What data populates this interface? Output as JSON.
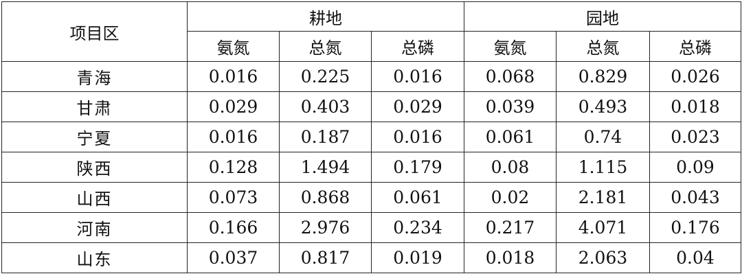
{
  "table": {
    "corner_header": "项目区",
    "groups": [
      "耕地",
      "园地"
    ],
    "subheaders": [
      "氨氮",
      "总氮",
      "总磷",
      "氨氮",
      "总氮",
      "总磷"
    ],
    "rows": [
      {
        "region": "青海",
        "values": [
          "0.016",
          "0.225",
          "0.016",
          "0.068",
          "0.829",
          "0.026"
        ]
      },
      {
        "region": "甘肃",
        "values": [
          "0.029",
          "0.403",
          "0.029",
          "0.039",
          "0.493",
          "0.018"
        ]
      },
      {
        "region": "宁夏",
        "values": [
          "0.016",
          "0.187",
          "0.016",
          "0.061",
          "0.74",
          "0.023"
        ]
      },
      {
        "region": "陕西",
        "values": [
          "0.128",
          "1.494",
          "0.179",
          "0.08",
          "1.115",
          "0.09"
        ]
      },
      {
        "region": "山西",
        "values": [
          "0.073",
          "0.868",
          "0.061",
          "0.02",
          "2.181",
          "0.043"
        ]
      },
      {
        "region": "河南",
        "values": [
          "0.166",
          "2.976",
          "0.234",
          "0.217",
          "4.071",
          "0.176"
        ]
      },
      {
        "region": "山东",
        "values": [
          "0.037",
          "0.817",
          "0.019",
          "0.018",
          "2.063",
          "0.04"
        ]
      }
    ]
  }
}
